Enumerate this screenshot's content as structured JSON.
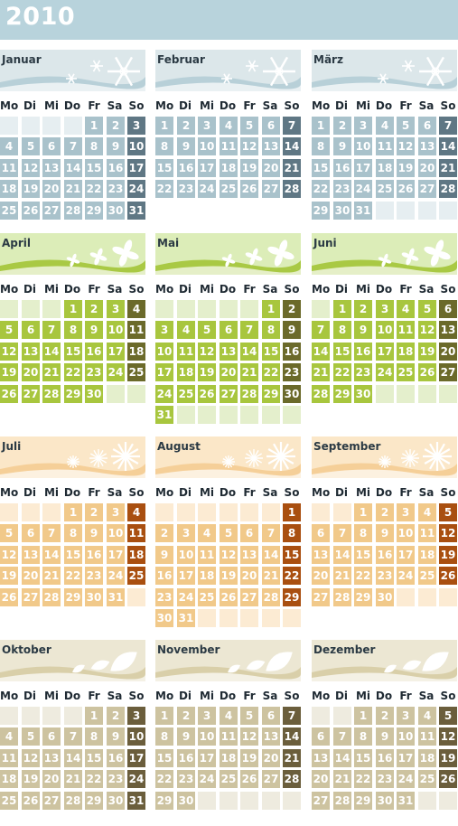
{
  "year": "2010",
  "weekdays": [
    "Mo",
    "Di",
    "Mi",
    "Do",
    "Fr",
    "Sa",
    "So"
  ],
  "months": [
    {
      "name": "Januar",
      "days": 31,
      "offset": 4,
      "theme": "winter",
      "icon": "snowflake-icon"
    },
    {
      "name": "Februar",
      "days": 28,
      "offset": 0,
      "theme": "winter",
      "icon": "snowflake-icon"
    },
    {
      "name": "März",
      "days": 31,
      "offset": 0,
      "theme": "winter",
      "icon": "snowflake-icon"
    },
    {
      "name": "April",
      "days": 30,
      "offset": 3,
      "theme": "spring",
      "icon": "flower-icon"
    },
    {
      "name": "Mai",
      "days": 31,
      "offset": 5,
      "theme": "spring",
      "icon": "flower-icon"
    },
    {
      "name": "Juni",
      "days": 30,
      "offset": 1,
      "theme": "spring",
      "icon": "flower-icon"
    },
    {
      "name": "Juli",
      "days": 31,
      "offset": 3,
      "theme": "summer",
      "icon": "sun-sparkle-icon"
    },
    {
      "name": "August",
      "days": 31,
      "offset": 6,
      "theme": "summer",
      "icon": "sun-sparkle-icon"
    },
    {
      "name": "September",
      "days": 30,
      "offset": 2,
      "theme": "summer",
      "icon": "sun-sparkle-icon"
    },
    {
      "name": "Oktober",
      "days": 31,
      "offset": 4,
      "theme": "autumn",
      "icon": "leaf-icon"
    },
    {
      "name": "November",
      "days": 30,
      "offset": 0,
      "theme": "autumn",
      "icon": "leaf-icon"
    },
    {
      "name": "Dezember",
      "days": 31,
      "offset": 2,
      "theme": "autumn",
      "icon": "leaf-icon"
    }
  ],
  "themes": {
    "winter": {
      "banner": "#dce7ea",
      "wave": "#b8d0d8",
      "empty": "#e6eef1",
      "day": "#a9c2cb",
      "sunday": "#5f7784",
      "deco": "#ffffff"
    },
    "spring": {
      "banner": "#dcedb8",
      "wave": "#a9c944",
      "empty": "#e4efcc",
      "day": "#a8c63e",
      "sunday": "#6b6a2a",
      "deco": "#ffffff"
    },
    "summer": {
      "banner": "#fbe7c8",
      "wave": "#f5cf98",
      "empty": "#fcebd3",
      "day": "#f1c98a",
      "sunday": "#a94f10",
      "deco": "#ffffff"
    },
    "autumn": {
      "banner": "#ece7d3",
      "wave": "#d9cfa9",
      "empty": "#eeebdf",
      "day": "#cdc3a0",
      "sunday": "#6b5e3c",
      "deco": "#ffffff"
    }
  },
  "colors": {
    "yearbar": "#b8d3dc"
  }
}
